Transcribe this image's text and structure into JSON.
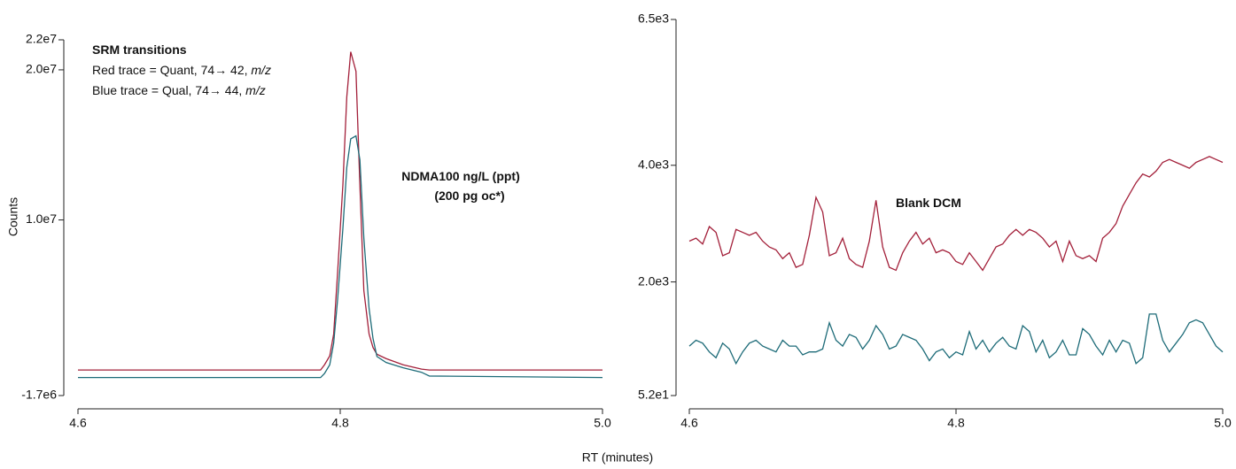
{
  "chart_data": [
    {
      "type": "line",
      "ylabel": "Counts",
      "xlabel": "RT (minutes)",
      "xlim": [
        4.6,
        5.0
      ],
      "xticks": [
        4.6,
        4.8,
        {
          "value": 5.0,
          "label": "5.0"
        }
      ],
      "ylim": [
        -1700000,
        22000000
      ],
      "yticks": [
        {
          "value": -1700000,
          "label": "-1.7e6"
        },
        {
          "value": 10000000,
          "label": "1.0e7"
        },
        {
          "value": 20000000,
          "label": "2.0e7"
        },
        {
          "value": 22000000,
          "label": "2.2e7"
        }
      ],
      "annotations": [
        {
          "text": "SRM transitions",
          "bold": true
        },
        {
          "text": "Red trace = Quant, 74→ 42, ",
          "italic": "m/z"
        },
        {
          "text": "Blue trace = Qual, 74→ 44, ",
          "italic": "m/z"
        },
        {
          "text": "NDMA100 ng/L (ppt)",
          "bold": true
        },
        {
          "text": "(200 pg oc*)",
          "bold": true
        }
      ],
      "x": [
        4.6,
        4.785,
        4.788,
        4.792,
        4.795,
        4.798,
        4.802,
        4.805,
        4.808,
        4.812,
        4.815,
        4.818,
        4.822,
        4.825,
        4.828,
        4.835,
        4.848,
        4.862,
        4.868,
        5.0
      ],
      "series": [
        {
          "color": "#a3203a",
          "values": [
            0,
            0,
            350000,
            940000,
            2400000,
            6500000,
            12300000,
            18200000,
            21200000,
            19900000,
            12300000,
            5300000,
            2400000,
            1500000,
            1050000,
            760000,
            350000,
            60000,
            0,
            0
          ]
        },
        {
          "color": "#1d6b78",
          "values": [
            -500000,
            -500000,
            -230000,
            350000,
            1800000,
            4700000,
            9400000,
            13500000,
            15400000,
            15600000,
            14000000,
            8800000,
            4100000,
            2100000,
            900000,
            500000,
            150000,
            -150000,
            -400000,
            -500000
          ]
        }
      ]
    },
    {
      "type": "line",
      "xlim": [
        4.6,
        5.0
      ],
      "xticks": [
        4.6,
        4.8,
        {
          "value": 5.0,
          "label": "5.0"
        }
      ],
      "ylim": [
        52,
        6500
      ],
      "yticks": [
        {
          "value": 52,
          "label": "5.2e1"
        },
        {
          "value": 2000,
          "label": "2.0e3"
        },
        {
          "value": 4000,
          "label": "4.0e3"
        },
        {
          "value": 6500,
          "label": "6.5e3"
        }
      ],
      "annotations": [
        {
          "text": "Blank DCM",
          "bold": true
        }
      ],
      "x": [
        4.6,
        4.605,
        4.61,
        4.615,
        4.62,
        4.625,
        4.63,
        4.635,
        4.64,
        4.645,
        4.65,
        4.655,
        4.66,
        4.665,
        4.67,
        4.675,
        4.68,
        4.685,
        4.69,
        4.695,
        4.7,
        4.705,
        4.71,
        4.715,
        4.72,
        4.725,
        4.73,
        4.735,
        4.74,
        4.745,
        4.75,
        4.755,
        4.76,
        4.765,
        4.77,
        4.775,
        4.78,
        4.785,
        4.79,
        4.795,
        4.8,
        4.805,
        4.81,
        4.815,
        4.82,
        4.825,
        4.83,
        4.835,
        4.84,
        4.845,
        4.85,
        4.855,
        4.86,
        4.865,
        4.87,
        4.875,
        4.88,
        4.885,
        4.89,
        4.895,
        4.9,
        4.905,
        4.91,
        4.915,
        4.92,
        4.925,
        4.93,
        4.935,
        4.94,
        4.945,
        4.95,
        4.955,
        4.96,
        4.965,
        4.97,
        4.975,
        4.98,
        4.985,
        4.99,
        4.995,
        5.0
      ],
      "series": [
        {
          "color": "#a3203a",
          "values": [
            2700,
            2750,
            2650,
            2950,
            2850,
            2450,
            2500,
            2900,
            2850,
            2800,
            2850,
            2700,
            2600,
            2550,
            2400,
            2500,
            2250,
            2300,
            2800,
            3450,
            3200,
            2450,
            2500,
            2750,
            2400,
            2300,
            2250,
            2700,
            3400,
            2600,
            2250,
            2200,
            2500,
            2700,
            2850,
            2650,
            2750,
            2500,
            2550,
            2500,
            2350,
            2300,
            2500,
            2350,
            2200,
            2400,
            2600,
            2650,
            2800,
            2900,
            2800,
            2900,
            2850,
            2750,
            2600,
            2700,
            2350,
            2700,
            2450,
            2400,
            2450,
            2350,
            2750,
            2850,
            3000,
            3300,
            3500,
            3700,
            3850,
            3800,
            3900,
            4050,
            4100,
            4050,
            4000,
            3950,
            4050,
            4100,
            4150,
            4100,
            4050
          ]
        },
        {
          "color": "#1d6b78",
          "values": [
            900,
            1000,
            950,
            800,
            700,
            950,
            850,
            600,
            800,
            950,
            1000,
            900,
            850,
            800,
            1000,
            900,
            900,
            750,
            800,
            800,
            850,
            1300,
            1000,
            900,
            1100,
            1050,
            850,
            1000,
            1250,
            1100,
            850,
            900,
            1100,
            1050,
            1000,
            850,
            650,
            800,
            850,
            700,
            800,
            750,
            1150,
            850,
            1000,
            800,
            950,
            1050,
            900,
            850,
            1250,
            1150,
            800,
            1000,
            700,
            800,
            1000,
            750,
            750,
            1200,
            1100,
            900,
            750,
            1000,
            800,
            1000,
            950,
            600,
            700,
            1450,
            1450,
            1000,
            800,
            950,
            1100,
            1300,
            1350,
            1300,
            1100,
            900,
            800
          ]
        }
      ]
    }
  ]
}
